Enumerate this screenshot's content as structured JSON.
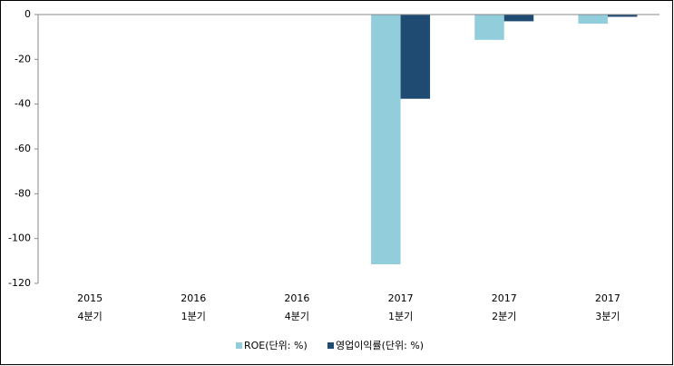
{
  "chart_data": {
    "type": "bar",
    "categories": [
      [
        "2015",
        "4분기"
      ],
      [
        "2016",
        "1분기"
      ],
      [
        "2016",
        "4분기"
      ],
      [
        "2017",
        "1분기"
      ],
      [
        "2017",
        "2분기"
      ],
      [
        "2017",
        "3분기"
      ]
    ],
    "series": [
      {
        "name": "ROE(단위: %)",
        "color": "#92cddc",
        "values": [
          null,
          null,
          null,
          -111.5,
          -11.3,
          -4.1
        ]
      },
      {
        "name": "영업이익률(단위: %)",
        "color": "#1f4a72",
        "values": [
          null,
          null,
          null,
          -37.6,
          -3.0,
          -1.0
        ]
      }
    ],
    "ylim": [
      -120,
      0
    ],
    "yticks": [
      0,
      -20,
      -40,
      -60,
      -80,
      -100,
      -120
    ],
    "legend": "bottom"
  }
}
